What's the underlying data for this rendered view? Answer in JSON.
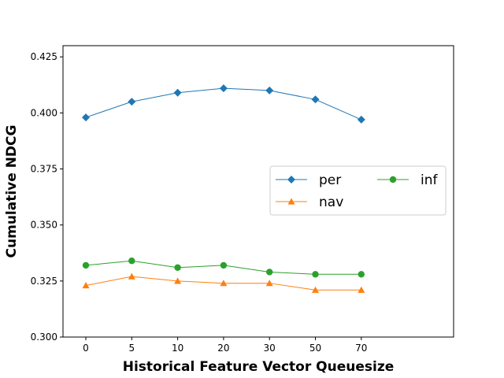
{
  "chart_data": {
    "type": "line",
    "title": "",
    "xlabel": "Historical Feature Vector Queuesize",
    "ylabel": "Cumulative NDCG",
    "categories": [
      "0",
      "5",
      "10",
      "20",
      "30",
      "50",
      "70"
    ],
    "ylim": [
      0.3,
      0.43
    ],
    "yticks": [
      "0.300",
      "0.325",
      "0.350",
      "0.375",
      "0.400",
      "0.425"
    ],
    "grid": false,
    "legend": {
      "placement": "center-right",
      "columns": 2
    },
    "series": [
      {
        "name": "per",
        "color": "#1f77b4",
        "marker": "diamond",
        "values": [
          0.398,
          0.405,
          0.409,
          0.411,
          0.41,
          0.406,
          0.397
        ]
      },
      {
        "name": "nav",
        "color": "#ff7f0e",
        "marker": "triangle",
        "values": [
          0.323,
          0.327,
          0.325,
          0.324,
          0.324,
          0.321,
          0.321
        ]
      },
      {
        "name": "inf",
        "color": "#2ca02c",
        "marker": "circle",
        "values": [
          0.332,
          0.334,
          0.331,
          0.332,
          0.329,
          0.328,
          0.328
        ]
      }
    ]
  }
}
